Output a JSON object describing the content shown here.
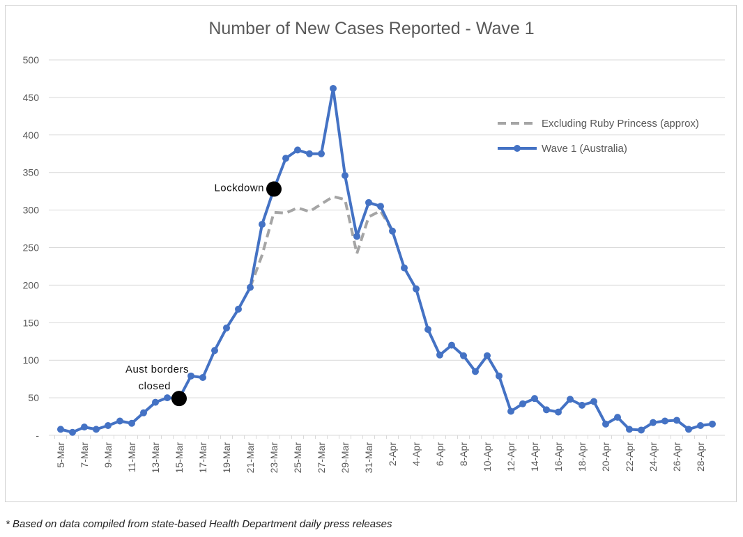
{
  "chart_data": {
    "type": "line",
    "title": "Number of New Cases Reported - Wave 1",
    "footnote": "* Based on data compiled from state-based Health Department daily press releases",
    "ylim": [
      0,
      500
    ],
    "yticks": [
      0,
      50,
      100,
      150,
      200,
      250,
      300,
      350,
      400,
      450,
      500
    ],
    "ytick_labels": [
      "-",
      "50",
      "100",
      "150",
      "200",
      "250",
      "300",
      "350",
      "400",
      "450",
      "500"
    ],
    "grid": true,
    "legend_placement": "right",
    "categories": [
      "5-Mar",
      "6-Mar",
      "7-Mar",
      "8-Mar",
      "9-Mar",
      "10-Mar",
      "11-Mar",
      "12-Mar",
      "13-Mar",
      "14-Mar",
      "15-Mar",
      "16-Mar",
      "17-Mar",
      "18-Mar",
      "19-Mar",
      "20-Mar",
      "21-Mar",
      "22-Mar",
      "23-Mar",
      "24-Mar",
      "25-Mar",
      "26-Mar",
      "27-Mar",
      "28-Mar",
      "29-Mar",
      "30-Mar",
      "31-Mar",
      "1-Apr",
      "2-Apr",
      "3-Apr",
      "4-Apr",
      "5-Apr",
      "6-Apr",
      "7-Apr",
      "8-Apr",
      "9-Apr",
      "10-Apr",
      "11-Apr",
      "12-Apr",
      "13-Apr",
      "14-Apr",
      "15-Apr",
      "16-Apr",
      "17-Apr",
      "18-Apr",
      "19-Apr",
      "20-Apr",
      "21-Apr",
      "22-Apr",
      "23-Apr",
      "24-Apr",
      "25-Apr",
      "26-Apr",
      "27-Apr",
      "28-Apr",
      "29-Apr"
    ],
    "xtick_labels": [
      "5-Mar",
      "7-Mar",
      "9-Mar",
      "11-Mar",
      "13-Mar",
      "15-Mar",
      "17-Mar",
      "19-Mar",
      "21-Mar",
      "23-Mar",
      "25-Mar",
      "27-Mar",
      "29-Mar",
      "31-Mar",
      "2-Apr",
      "4-Apr",
      "6-Apr",
      "8-Apr",
      "10-Apr",
      "12-Apr",
      "14-Apr",
      "16-Apr",
      "18-Apr",
      "20-Apr",
      "22-Apr",
      "24-Apr",
      "26-Apr",
      "28-Apr"
    ],
    "series": [
      {
        "name": "Excluding Ruby Princess (approx)",
        "color": "#a5a5a5",
        "style": "dashed",
        "values": [
          null,
          null,
          null,
          null,
          null,
          null,
          null,
          null,
          null,
          null,
          null,
          null,
          null,
          null,
          null,
          null,
          197,
          240,
          297,
          296,
          303,
          298,
          308,
          318,
          314,
          242,
          291,
          299,
          272,
          null,
          null,
          null,
          null,
          null,
          null,
          null,
          null,
          null,
          null,
          null,
          null,
          null,
          null,
          null,
          null,
          null,
          null,
          null,
          null,
          null,
          null,
          null,
          null,
          null,
          null,
          null
        ]
      },
      {
        "name": "Wave 1 (Australia)",
        "color": "#4472c4",
        "style": "solid-markers",
        "values": [
          8,
          4,
          11,
          8,
          13,
          19,
          16,
          30,
          44,
          50,
          49,
          79,
          77,
          113,
          143,
          168,
          197,
          281,
          328,
          369,
          380,
          375,
          375,
          462,
          346,
          265,
          310,
          305,
          272,
          223,
          195,
          141,
          107,
          120,
          106,
          85,
          106,
          79,
          32,
          42,
          49,
          34,
          31,
          48,
          40,
          45,
          15,
          24,
          8,
          7,
          17,
          19,
          20,
          8,
          13,
          15
        ]
      }
    ],
    "annotations": [
      {
        "text": "Aust borders closed",
        "lines": [
          "Aust borders",
          "closed"
        ],
        "x": "15-Mar",
        "y": 49
      },
      {
        "text": "Lockdown",
        "lines": [
          "Lockdown"
        ],
        "x": "23-Mar",
        "y": 328
      }
    ]
  }
}
